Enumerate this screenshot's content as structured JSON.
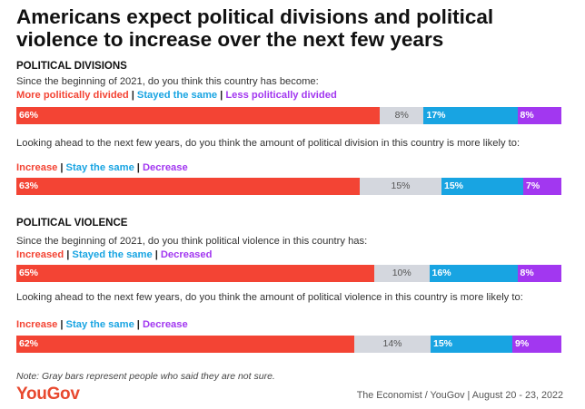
{
  "title": "Americans expect political divisions and political violence to increase over the next few years",
  "colors": {
    "main": "#f34434",
    "unsure": "#d4d7de",
    "same": "#18a4e2",
    "less": "#a237f0"
  },
  "chart_data": {
    "type": "bar",
    "orientation": "horizontal-stacked",
    "xlim": [
      0,
      100
    ],
    "sections": [
      {
        "heading": "POLITICAL DIVISIONS",
        "questions": [
          {
            "text": "Since the beginning of 2021, do you think this country has become:",
            "legend": [
              "More politically divided",
              "Stayed the same",
              "Less politically divided"
            ],
            "values": {
              "main": 66,
              "unsure": 8,
              "same": 17,
              "less": 8
            },
            "labels": {
              "main": "66%",
              "unsure": "8%",
              "same": "17%",
              "less": "8%"
            }
          },
          {
            "text": "Looking ahead to the next few years, do you think the amount of political division in this country is more likely to:",
            "legend": [
              "Increase",
              "Stay the same",
              "Decrease"
            ],
            "values": {
              "main": 63,
              "unsure": 15,
              "same": 15,
              "less": 7
            },
            "labels": {
              "main": "63%",
              "unsure": "15%",
              "same": "15%",
              "less": "7%"
            }
          }
        ]
      },
      {
        "heading": "POLITICAL VIOLENCE",
        "questions": [
          {
            "text": "Since the beginning of 2021, do you think political violence in this country has:",
            "legend": [
              "Increased",
              "Stayed the same",
              "Decreased"
            ],
            "values": {
              "main": 65,
              "unsure": 10,
              "same": 16,
              "less": 8
            },
            "labels": {
              "main": "65%",
              "unsure": "10%",
              "same": "16%",
              "less": "8%"
            }
          },
          {
            "text": "Looking ahead to the next few years, do you think the amount of political violence in this country is more likely to:",
            "legend": [
              "Increase",
              "Stay the same",
              "Decrease"
            ],
            "values": {
              "main": 62,
              "unsure": 14,
              "same": 15,
              "less": 9
            },
            "labels": {
              "main": "62%",
              "unsure": "14%",
              "same": "15%",
              "less": "9%"
            }
          }
        ]
      }
    ]
  },
  "note": "Note: Gray bars represent people who said they are not sure.",
  "logo": "YouGov",
  "source": "The Economist / YouGov | August 20 - 23, 2022"
}
